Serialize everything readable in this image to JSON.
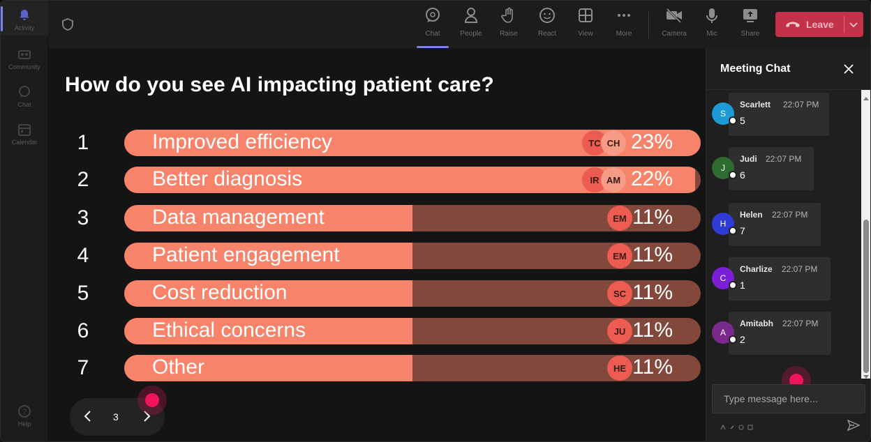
{
  "rail": {
    "items": [
      {
        "label": "Activity",
        "icon": "bell-icon"
      },
      {
        "label": "Community",
        "icon": "community-icon"
      },
      {
        "label": "Chat",
        "icon": "chat-icon"
      },
      {
        "label": "Calendar",
        "icon": "calendar-icon"
      },
      {
        "label": "Help",
        "icon": "help-icon"
      }
    ]
  },
  "toolbar": {
    "buttons": [
      {
        "label": "Chat",
        "icon": "chat-icon"
      },
      {
        "label": "People",
        "icon": "people-icon"
      },
      {
        "label": "Raise",
        "icon": "raise-hand-icon"
      },
      {
        "label": "React",
        "icon": "react-icon"
      },
      {
        "label": "View",
        "icon": "view-icon"
      },
      {
        "label": "More",
        "icon": "more-icon"
      },
      {
        "label": "Camera",
        "icon": "camera-off-icon"
      },
      {
        "label": "Mic",
        "icon": "mic-icon"
      },
      {
        "label": "Share",
        "icon": "share-icon"
      }
    ],
    "leave_label": "Leave"
  },
  "poll": {
    "question": "How do you see AI impacting patient care?",
    "options": [
      {
        "num": "1",
        "label": "Improved efficiency",
        "pct": "23%",
        "fraction": 1.0,
        "avatars": [
          "TC",
          "CH"
        ]
      },
      {
        "num": "2",
        "label": "Better diagnosis",
        "pct": "22%",
        "fraction": 0.99,
        "avatars": [
          "IR",
          "AM"
        ]
      },
      {
        "num": "3",
        "label": "Data management",
        "pct": "11%",
        "fraction": 0.5,
        "avatars": [
          "EM"
        ]
      },
      {
        "num": "4",
        "label": "Patient engagement",
        "pct": "11%",
        "fraction": 0.5,
        "avatars": [
          "EM"
        ]
      },
      {
        "num": "5",
        "label": "Cost reduction",
        "pct": "11%",
        "fraction": 0.5,
        "avatars": [
          "SC"
        ]
      },
      {
        "num": "6",
        "label": "Ethical concerns",
        "pct": "11%",
        "fraction": 0.5,
        "avatars": [
          "JU"
        ]
      },
      {
        "num": "7",
        "label": "Other",
        "pct": "11%",
        "fraction": 0.5,
        "avatars": [
          "HE"
        ]
      }
    ],
    "page": "3"
  },
  "chat": {
    "title": "Meeting Chat",
    "messages": [
      {
        "initial": "S",
        "name": "Scarlett",
        "time": "22:07 PM",
        "text": "5",
        "color": "#1e9bd7"
      },
      {
        "initial": "J",
        "name": "Judi",
        "time": "22:07 PM",
        "text": "6",
        "color": "#2e6b2e"
      },
      {
        "initial": "H",
        "name": "Helen",
        "time": "22:07 PM",
        "text": "7",
        "color": "#2e3bd6"
      },
      {
        "initial": "C",
        "name": "Charlize",
        "time": "22:07 PM",
        "text": "1",
        "color": "#7a1fd6"
      },
      {
        "initial": "A",
        "name": "Amitabh",
        "time": "22:07 PM",
        "text": "2",
        "color": "#7a2a8c"
      }
    ],
    "input_placeholder": "Type message here..."
  },
  "colors": {
    "bar_fill": "#f7836a",
    "bar_track": "#82483b",
    "leave": "#c4314b",
    "accent": "#7b83eb"
  }
}
